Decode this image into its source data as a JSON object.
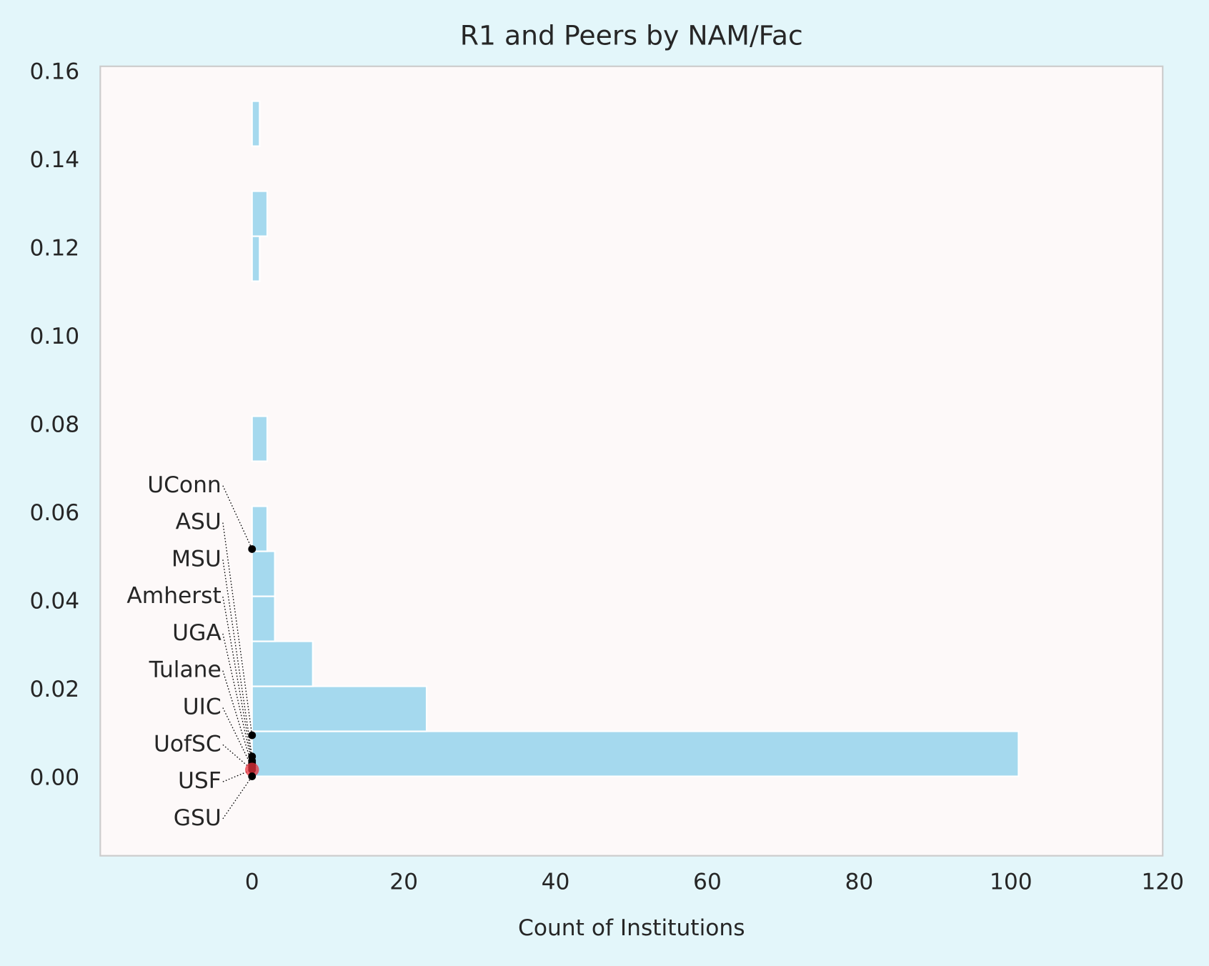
{
  "chart_data": {
    "type": "histogram",
    "title": "R1 and Peers by NAM/Fac",
    "xlabel": "Count of Institutions",
    "orientation": "horizontal",
    "bins": [
      0.0005,
      0.0107,
      0.0209,
      0.0311,
      0.0413,
      0.0515,
      0.0617,
      0.0719,
      0.0821,
      0.0923,
      0.1025,
      0.1127,
      0.1229,
      0.1331,
      0.1433,
      0.1535
    ],
    "counts": [
      101,
      23,
      8,
      3,
      3,
      2,
      0,
      2,
      0,
      0,
      0,
      1,
      2,
      0,
      1
    ],
    "color": "#a5d9ee",
    "points": {
      "labels": [
        "UConn",
        "ASU",
        "MSU",
        "Amherst",
        "UGA",
        "Tulane",
        "UIC",
        "UofSC",
        "USF",
        "GSU"
      ],
      "x": [
        0,
        0,
        0,
        0,
        0,
        0,
        0,
        0,
        0,
        0
      ],
      "values": [
        0.052,
        0.0098,
        0.005,
        0.004,
        0.0035,
        0.003,
        0.0025,
        0.002,
        0.002,
        0.0005
      ],
      "color": "#000000",
      "highlight": "USF",
      "highlight_color": "#e8323c"
    },
    "xlim": [
      -20,
      120
    ],
    "xticks": [
      0,
      20,
      40,
      60,
      80,
      100,
      120
    ],
    "ylim": [
      -0.0175,
      0.1614
    ],
    "yticks": [
      {
        "value": 0,
        "label": "0.00"
      },
      {
        "value": 0.02,
        "label": "0.02"
      },
      {
        "value": 0.04,
        "label": "0.04"
      },
      {
        "value": 0.06,
        "label": "0.06"
      },
      {
        "value": 0.08,
        "label": "0.08"
      },
      {
        "value": 0.1,
        "label": "0.10"
      },
      {
        "value": 0.12,
        "label": "0.12"
      },
      {
        "value": 0.14,
        "label": "0.14"
      },
      {
        "value": 0.16,
        "label": "0.16"
      }
    ],
    "grid": false
  }
}
